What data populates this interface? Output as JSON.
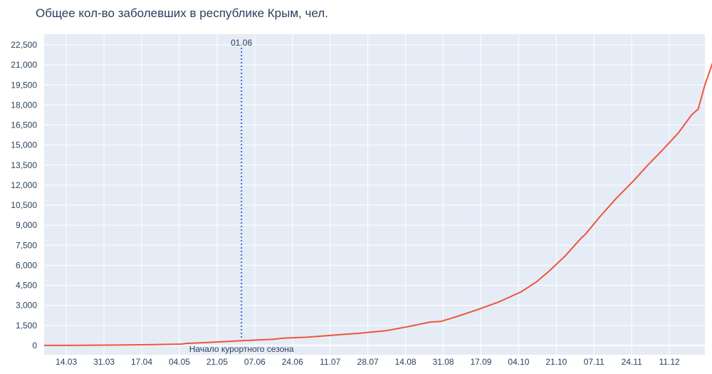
{
  "chart_data": {
    "type": "line",
    "title": "Общее кол-во заболевших в республике Крым, чел.",
    "xlabel": "",
    "ylabel": "",
    "grid": true,
    "x_ticks": [
      "14.03",
      "31.03",
      "17.04",
      "04.05",
      "21.05",
      "07.06",
      "24.06",
      "11.07",
      "28.07",
      "14.08",
      "31.08",
      "17.09",
      "04.10",
      "21.10",
      "07.11",
      "24.11",
      "11.12"
    ],
    "y_ticks": [
      "0",
      "1,500",
      "3,000",
      "4,500",
      "6,000",
      "7,500",
      "9,000",
      "10,500",
      "12,000",
      "13,500",
      "15,000",
      "16,500",
      "18,000",
      "19,500",
      "21,000",
      "22,500"
    ],
    "x_range": [
      "04.03",
      "27.12"
    ],
    "y_range": [
      -700,
      23300
    ],
    "series": [
      {
        "color": "#ef553b",
        "points": [
          {
            "date": "04.03",
            "value": 0
          },
          {
            "date": "20.03",
            "value": 10
          },
          {
            "date": "10.04",
            "value": 30
          },
          {
            "date": "20.04",
            "value": 50
          },
          {
            "date": "05.05",
            "value": 100
          },
          {
            "date": "07.05",
            "value": 150
          },
          {
            "date": "20.05",
            "value": 250
          },
          {
            "date": "01.06",
            "value": 350
          },
          {
            "date": "15.06",
            "value": 450
          },
          {
            "date": "20.06",
            "value": 550
          },
          {
            "date": "01.07",
            "value": 620
          },
          {
            "date": "15.07",
            "value": 800
          },
          {
            "date": "25.07",
            "value": 920
          },
          {
            "date": "05.08",
            "value": 1100
          },
          {
            "date": "15.08",
            "value": 1400
          },
          {
            "date": "25.08",
            "value": 1750
          },
          {
            "date": "30.08",
            "value": 1800
          },
          {
            "date": "05.09",
            "value": 2100
          },
          {
            "date": "15.09",
            "value": 2650
          },
          {
            "date": "25.09",
            "value": 3250
          },
          {
            "date": "05.10",
            "value": 4000
          },
          {
            "date": "12.10",
            "value": 4750
          },
          {
            "date": "18.10",
            "value": 5600
          },
          {
            "date": "25.10",
            "value": 6700
          },
          {
            "date": "01.11",
            "value": 8000
          },
          {
            "date": "03.11",
            "value": 8300
          },
          {
            "date": "10.11",
            "value": 9700
          },
          {
            "date": "17.11",
            "value": 11000
          },
          {
            "date": "25.11",
            "value": 12350
          },
          {
            "date": "01.12",
            "value": 13450
          },
          {
            "date": "08.12",
            "value": 14650
          },
          {
            "date": "15.12",
            "value": 15900
          },
          {
            "date": "21.12",
            "value": 17250
          },
          {
            "date": "24.12",
            "value": 17700
          },
          {
            "date": "27.12",
            "value": 19500
          },
          {
            "date": "31.12",
            "value": 21400
          }
        ]
      }
    ],
    "annotation": {
      "date": "01.06",
      "top_label": "01.06",
      "bottom_label": "Начало курортного сезона",
      "color": "#3e6bd9"
    }
  }
}
